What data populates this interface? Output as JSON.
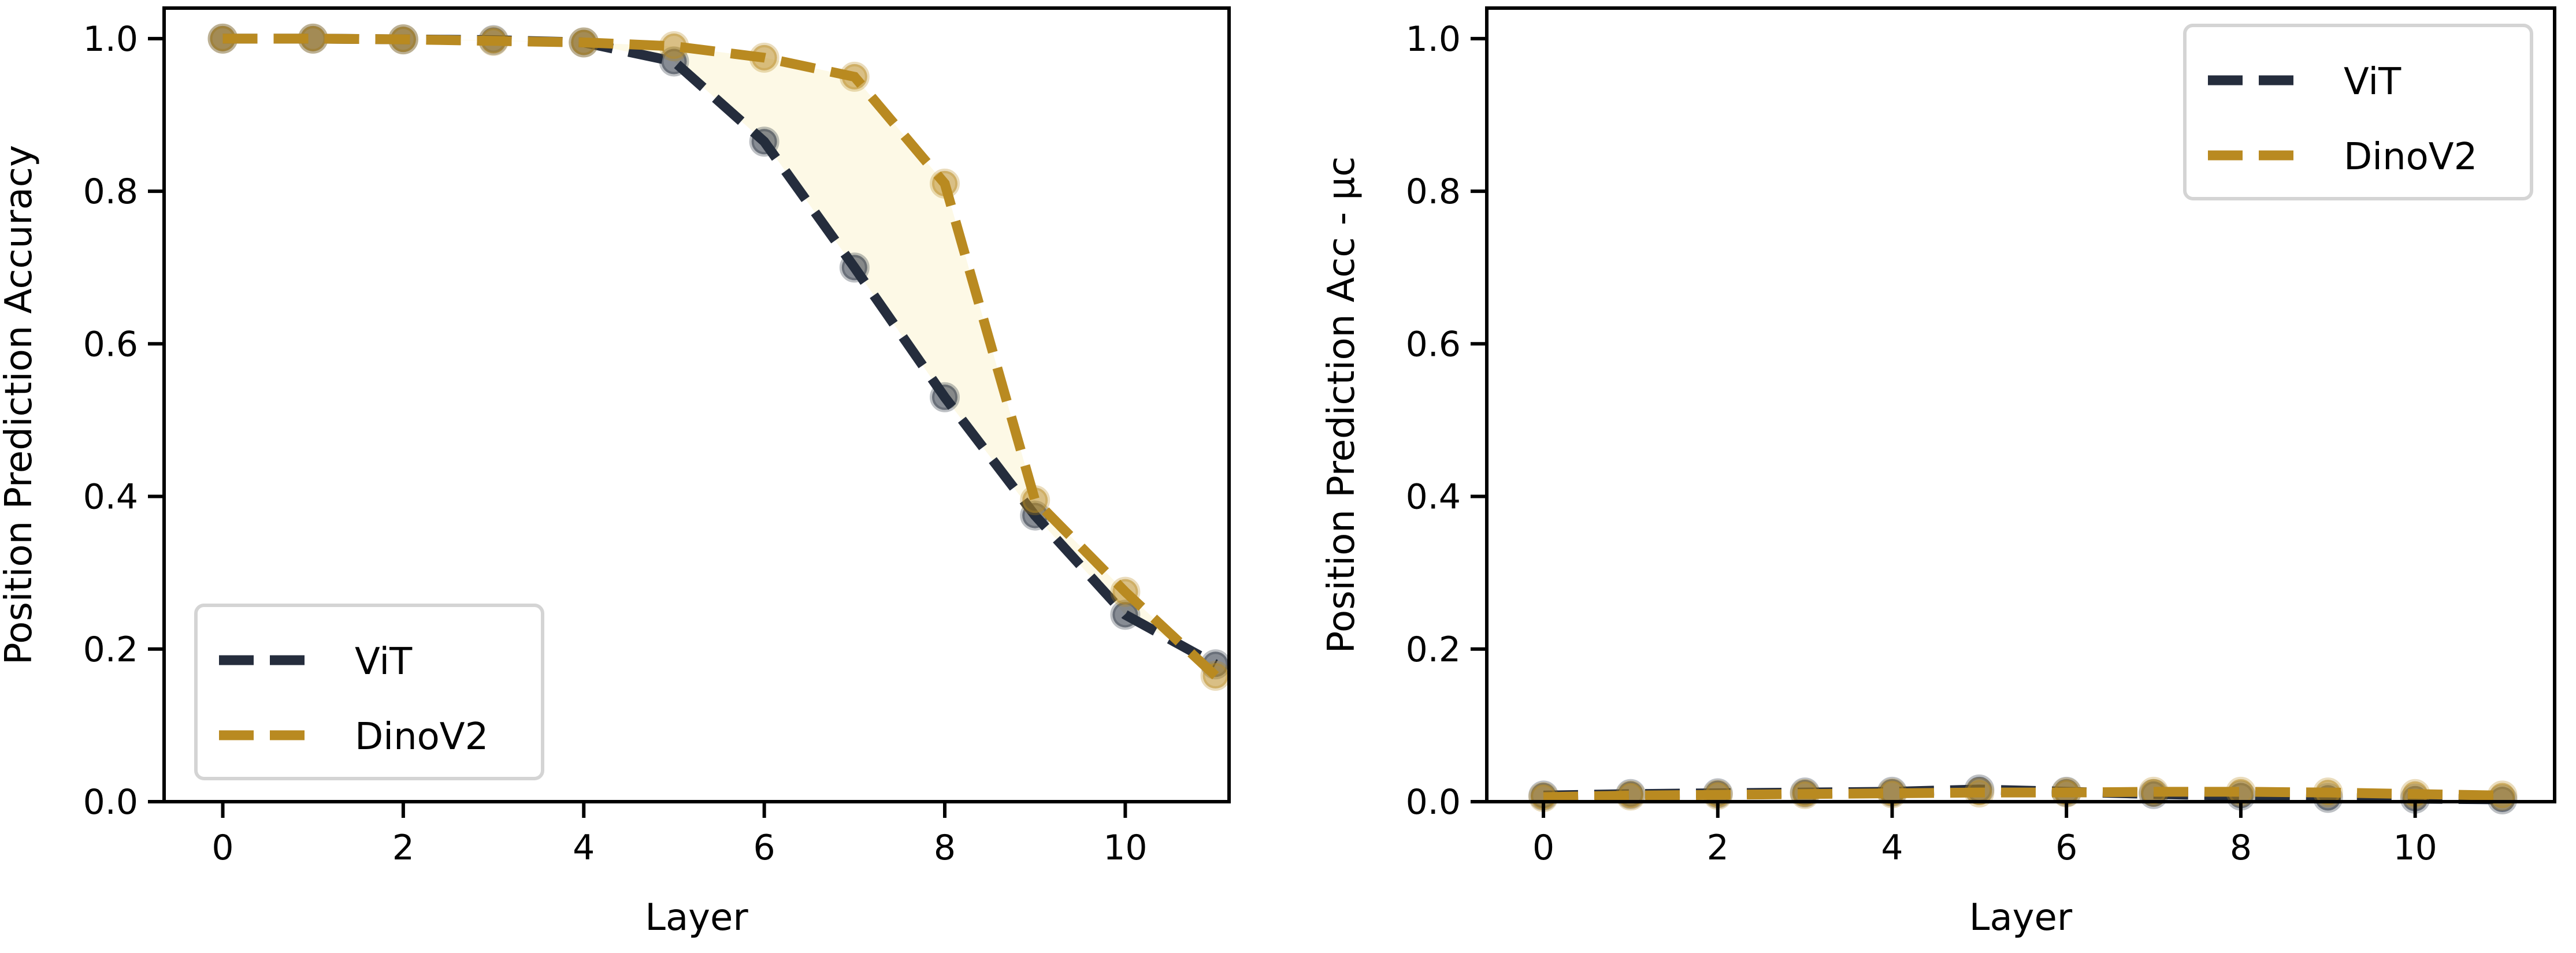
{
  "colors": {
    "ViT": "#252d3d",
    "DinoV2": "#b98a21",
    "fill": "#fdf9e6"
  },
  "chart_data": [
    {
      "type": "line",
      "xlabel": "Layer",
      "ylabel": "Position Prediction Accuracy",
      "xlim": [
        -0.65,
        11.15
      ],
      "ylim": [
        0,
        1.04
      ],
      "xticks": [
        0,
        2,
        4,
        6,
        8,
        10
      ],
      "yticks": [
        "0.0",
        "0.2",
        "0.4",
        "0.6",
        "0.8",
        "1.0"
      ],
      "x": [
        0,
        1,
        2,
        3,
        4,
        5,
        6,
        7,
        8,
        9,
        10,
        11
      ],
      "series": [
        {
          "name": "ViT",
          "values": [
            1.0,
            1.0,
            0.999,
            0.998,
            0.995,
            0.97,
            0.865,
            0.7,
            0.53,
            0.375,
            0.245,
            0.18
          ]
        },
        {
          "name": "DinoV2",
          "values": [
            1.0,
            1.0,
            0.999,
            0.997,
            0.995,
            0.99,
            0.975,
            0.95,
            0.81,
            0.395,
            0.275,
            0.165
          ]
        }
      ],
      "fill_between": true,
      "legend": "lower-left"
    },
    {
      "type": "line",
      "xlabel": "Layer",
      "ylabel": "Position Prediction Acc - μc",
      "xlim": [
        -0.65,
        11.6
      ],
      "ylim": [
        0,
        1.04
      ],
      "xticks": [
        0,
        2,
        4,
        6,
        8,
        10
      ],
      "yticks": [
        "0.0",
        "0.2",
        "0.4",
        "0.6",
        "0.8",
        "1.0"
      ],
      "x": [
        0,
        1,
        2,
        3,
        4,
        5,
        6,
        7,
        8,
        9,
        10,
        11
      ],
      "series": [
        {
          "name": "ViT",
          "values": [
            0.008,
            0.01,
            0.011,
            0.012,
            0.013,
            0.016,
            0.013,
            0.01,
            0.008,
            0.005,
            0.004,
            0.003
          ]
        },
        {
          "name": "DinoV2",
          "values": [
            0.006,
            0.008,
            0.009,
            0.01,
            0.011,
            0.012,
            0.012,
            0.013,
            0.013,
            0.012,
            0.01,
            0.008
          ]
        }
      ],
      "fill_between": false,
      "legend": "upper-right"
    }
  ]
}
